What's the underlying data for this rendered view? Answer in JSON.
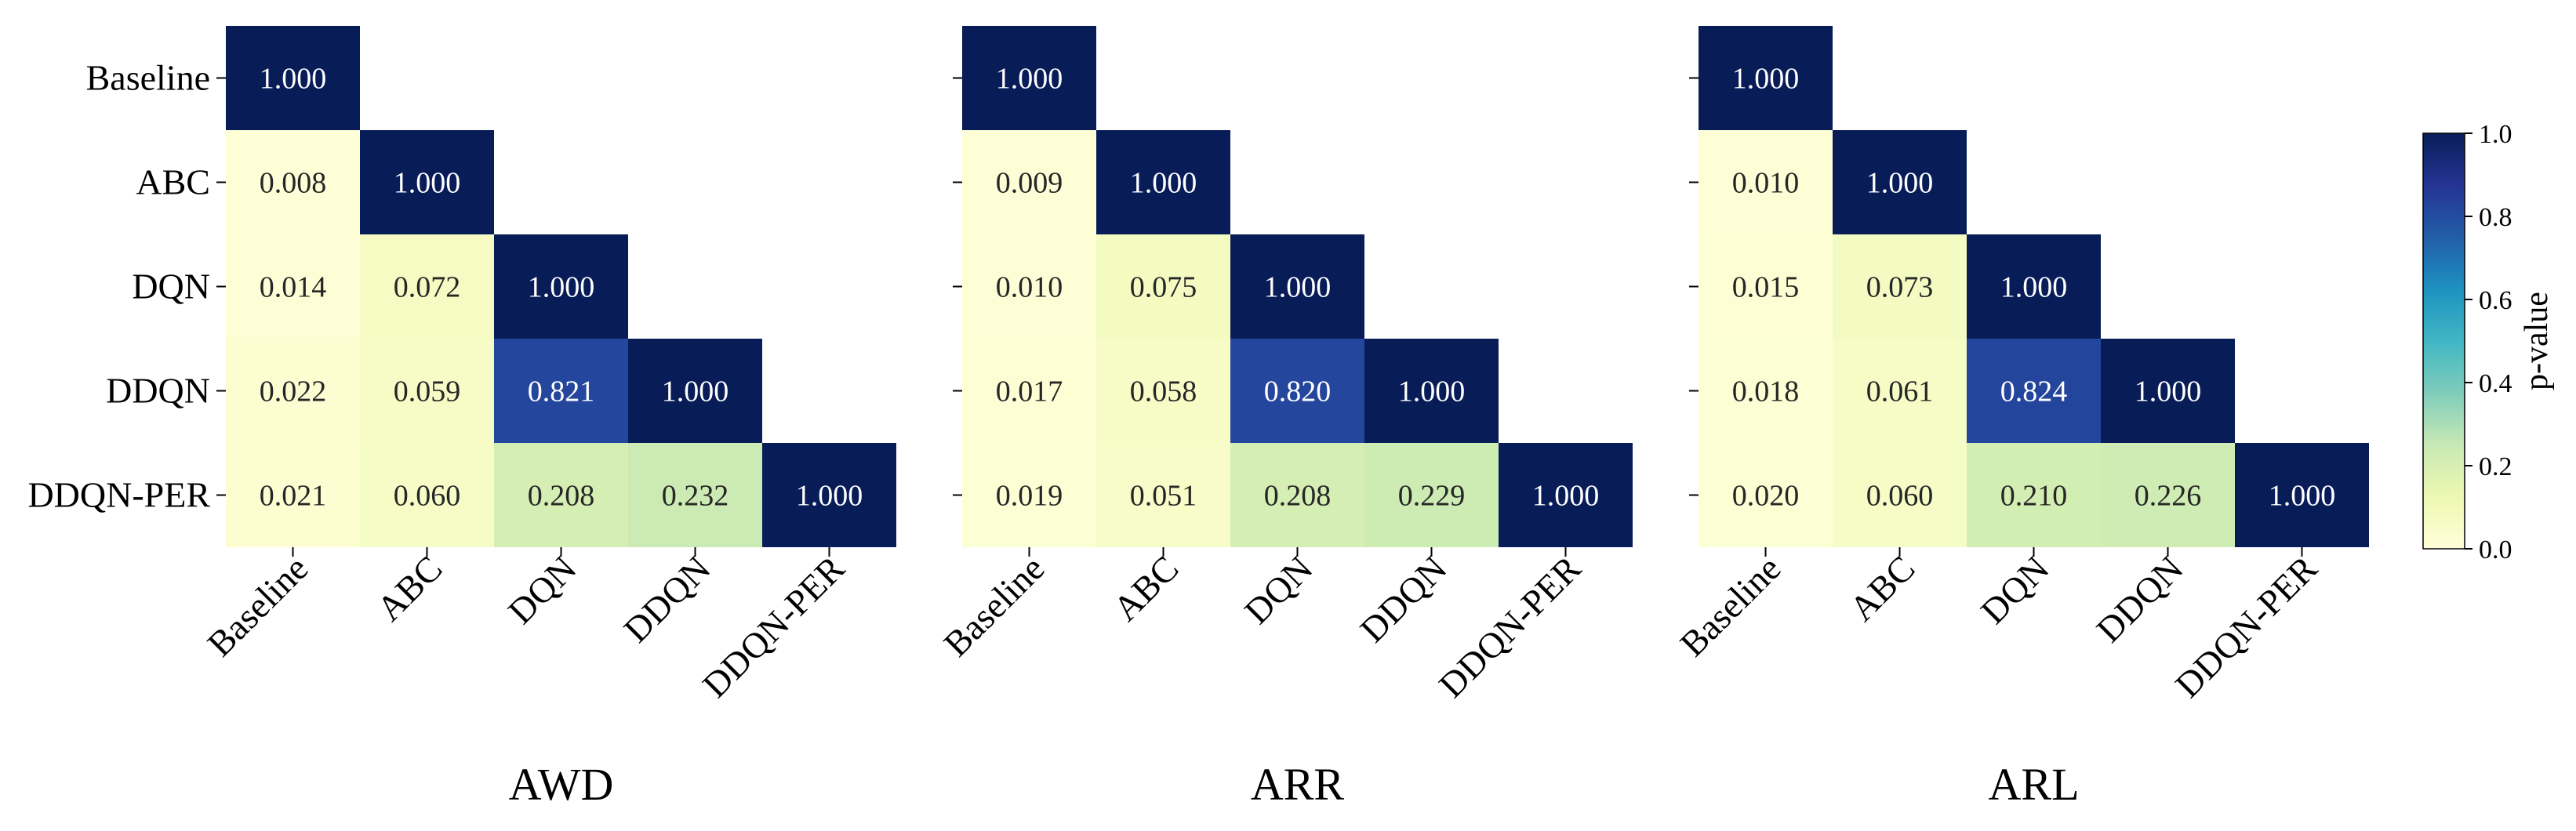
{
  "chart_data": [
    {
      "type": "heatmap",
      "title": "AWD",
      "labels": [
        "Baseline",
        "ABC",
        "DQN",
        "DDQN",
        "DDQN-PER"
      ],
      "cell_labels": [
        [
          "1.000",
          "",
          "",
          "",
          ""
        ],
        [
          "0.008",
          "1.000",
          "",
          "",
          ""
        ],
        [
          "0.014",
          "0.072",
          "1.000",
          "",
          ""
        ],
        [
          "0.022",
          "0.059",
          "0.821",
          "1.000",
          ""
        ],
        [
          "0.021",
          "0.060",
          "0.208",
          "0.232",
          "1.000"
        ]
      ],
      "values": [
        [
          1.0,
          null,
          null,
          null,
          null
        ],
        [
          0.008,
          1.0,
          null,
          null,
          null
        ],
        [
          0.014,
          0.072,
          1.0,
          null,
          null
        ],
        [
          0.022,
          0.059,
          0.821,
          1.0,
          null
        ],
        [
          0.021,
          0.06,
          0.208,
          0.232,
          1.0
        ]
      ],
      "show_y_tick_labels": true
    },
    {
      "type": "heatmap",
      "title": "ARR",
      "labels": [
        "Baseline",
        "ABC",
        "DQN",
        "DDQN",
        "DDQN-PER"
      ],
      "cell_labels": [
        [
          "1.000",
          "",
          "",
          "",
          ""
        ],
        [
          "0.009",
          "1.000",
          "",
          "",
          ""
        ],
        [
          "0.010",
          "0.075",
          "1.000",
          "",
          ""
        ],
        [
          "0.017",
          "0.058",
          "0.820",
          "1.000",
          ""
        ],
        [
          "0.019",
          "0.051",
          "0.208",
          "0.229",
          "1.000"
        ]
      ],
      "values": [
        [
          1.0,
          null,
          null,
          null,
          null
        ],
        [
          0.009,
          1.0,
          null,
          null,
          null
        ],
        [
          0.01,
          0.075,
          1.0,
          null,
          null
        ],
        [
          0.017,
          0.058,
          0.82,
          1.0,
          null
        ],
        [
          0.019,
          0.051,
          0.208,
          0.229,
          1.0
        ]
      ],
      "show_y_tick_labels": false
    },
    {
      "type": "heatmap",
      "title": "ARL",
      "labels": [
        "Baseline",
        "ABC",
        "DQN",
        "DDQN",
        "DDQN-PER"
      ],
      "cell_labels": [
        [
          "1.000",
          "",
          "",
          "",
          ""
        ],
        [
          "0.010",
          "1.000",
          "",
          "",
          ""
        ],
        [
          "0.015",
          "0.073",
          "1.000",
          "",
          ""
        ],
        [
          "0.018",
          "0.061",
          "0.824",
          "1.000",
          ""
        ],
        [
          "0.020",
          "0.060",
          "0.210",
          "0.226",
          "1.000"
        ]
      ],
      "values": [
        [
          1.0,
          null,
          null,
          null,
          null
        ],
        [
          0.01,
          1.0,
          null,
          null,
          null
        ],
        [
          0.015,
          0.073,
          1.0,
          null,
          null
        ],
        [
          0.018,
          0.061,
          0.824,
          1.0,
          null
        ],
        [
          0.02,
          0.06,
          0.21,
          0.226,
          1.0
        ]
      ],
      "show_y_tick_labels": false
    }
  ],
  "colorbar": {
    "label": "p-value",
    "range": [
      0,
      1
    ],
    "ticks": [
      "0.0",
      "0.2",
      "0.4",
      "0.6",
      "0.8",
      "1.0"
    ],
    "colormap": "YlGnBu",
    "stops": [
      "#ffffd9",
      "#edf8b1",
      "#c7e9b4",
      "#7fcdbb",
      "#41b6c4",
      "#1d91c0",
      "#225ea8",
      "#253494",
      "#081d58"
    ]
  }
}
